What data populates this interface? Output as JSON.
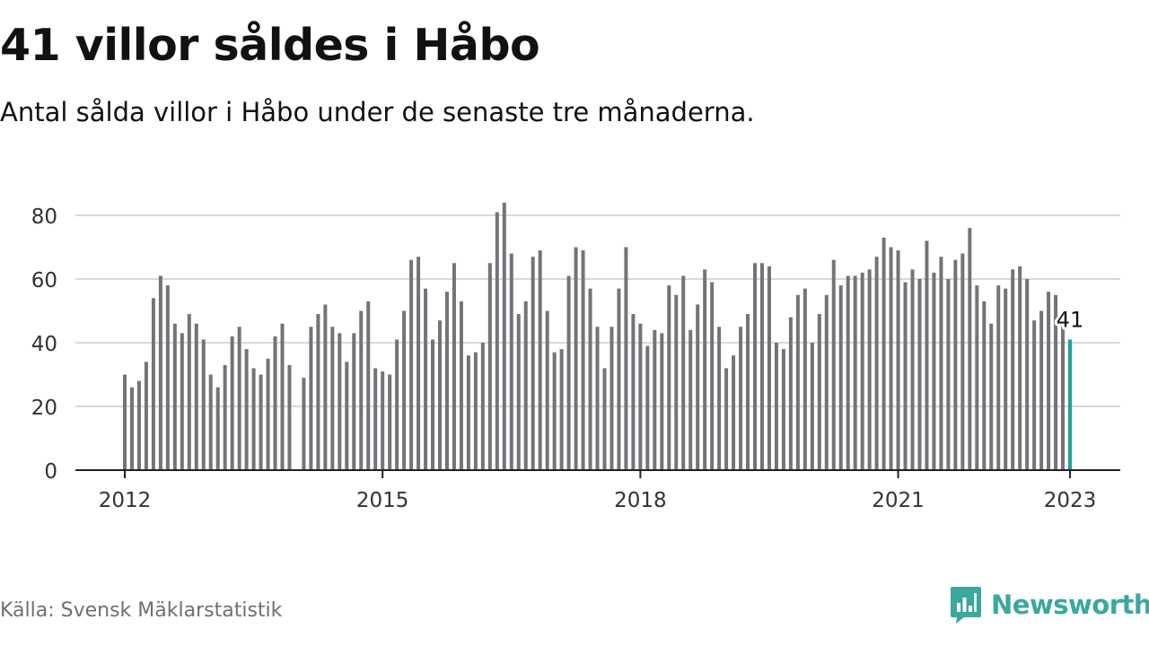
{
  "title": "41 villor såldes i Håbo",
  "subtitle": "Antal sålda villor i Håbo under de senaste tre månaderna.",
  "source": "Källa: Svensk Mäklarstatistik",
  "brand": {
    "name": "Newsworthy",
    "icon": "newsworthy-logo-icon",
    "color": "#3aa89e"
  },
  "colors": {
    "bar": "#737378",
    "highlight": "#1aa59b",
    "grid": "#d9d9d9",
    "axis": "#222222",
    "text": "#333333"
  },
  "chart_data": {
    "type": "bar",
    "xlabel": "",
    "ylabel": "",
    "ylim": [
      0,
      90
    ],
    "yticks": [
      0,
      20,
      40,
      60,
      80
    ],
    "xticks": [
      {
        "label": "2012",
        "x": "2012-01"
      },
      {
        "label": "2015",
        "x": "2015-01"
      },
      {
        "label": "2018",
        "x": "2018-01"
      },
      {
        "label": "2021",
        "x": "2021-01"
      },
      {
        "label": "2023",
        "x": "2023-01"
      }
    ],
    "grid": true,
    "start": "2012-01",
    "end": "2023-01",
    "series": [
      {
        "values": [
          30,
          26,
          28,
          34,
          54,
          61,
          58,
          46,
          43,
          49,
          46,
          41,
          30,
          26,
          33,
          42,
          45,
          38,
          32,
          30,
          35,
          42,
          46,
          33,
          null,
          29,
          45,
          49,
          52,
          45,
          43,
          34,
          43,
          50,
          53,
          32,
          31,
          30,
          41,
          50,
          66,
          67,
          57,
          41,
          47,
          56,
          65,
          53,
          36,
          37,
          40,
          65,
          81,
          84,
          68,
          49,
          53,
          67,
          69,
          50,
          37,
          38,
          61,
          70,
          69,
          57,
          45,
          32,
          45,
          57,
          70,
          49,
          46,
          39,
          44,
          43,
          58,
          55,
          61,
          44,
          52,
          63,
          59,
          45,
          32,
          36,
          45,
          49,
          65,
          65,
          64,
          40,
          38,
          48,
          55,
          57,
          40,
          49,
          55,
          66,
          58,
          61,
          61,
          62,
          63,
          67,
          73,
          70,
          69,
          59,
          63,
          60,
          72,
          62,
          67,
          60,
          66,
          68,
          76,
          58,
          53,
          46,
          58,
          57,
          63,
          64,
          60,
          47,
          50,
          56,
          55,
          46,
          41
        ]
      }
    ],
    "highlight": {
      "x": "2023-01",
      "value": 41,
      "label": "41"
    }
  }
}
